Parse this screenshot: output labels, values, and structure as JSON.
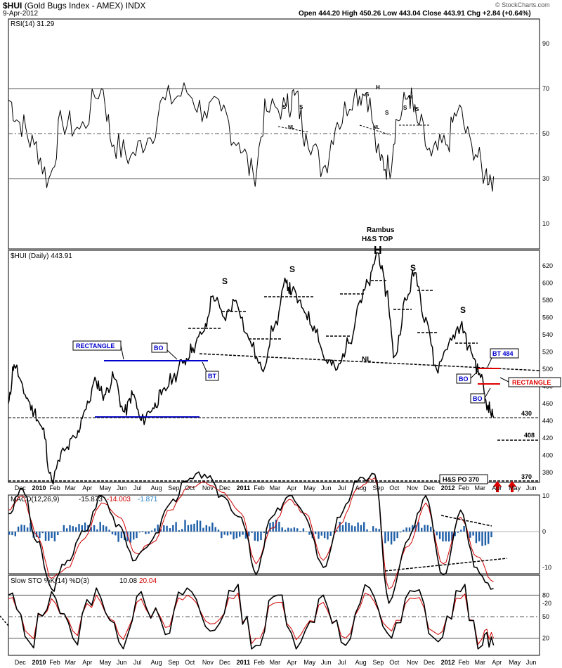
{
  "header": {
    "symbol": "$HUI",
    "name": "(Gold Bugs Index - AMEX)",
    "exchange": "INDX",
    "date": "9-Apr-2012",
    "ohlc": "Open 444.20   High 450.26   Low 443.04   Close 443.91   Chg +2.84 (+0.64%)",
    "brand": "© StockCharts.com"
  },
  "chart_data": [
    {
      "type": "line",
      "name": "rsi",
      "title": "RSI(14) 31.29",
      "y_ticks": [
        "90",
        "70",
        "50",
        "30",
        "10"
      ],
      "ylim": [
        0,
        100
      ],
      "levels": [
        70,
        50,
        30
      ],
      "x": [
        "2009-11-25",
        "2009-12-15",
        "2010-01-10",
        "2010-02-05",
        "2010-03-01",
        "2010-04-01",
        "2010-05-10",
        "2010-06-01",
        "2010-07-01",
        "2010-08-01",
        "2010-09-01",
        "2010-10-10",
        "2010-11-10",
        "2010-12-10",
        "2011-01-10",
        "2011-02-05",
        "2011-03-01",
        "2011-04-05",
        "2011-04-20",
        "2011-05-10",
        "2011-06-10",
        "2011-07-05",
        "2011-08-05",
        "2011-08-25",
        "2011-09-20",
        "2011-10-05",
        "2011-10-20",
        "2011-11-10",
        "2011-11-25",
        "2011-12-20",
        "2012-01-15",
        "2012-02-05",
        "2012-03-01",
        "2012-03-25",
        "2012-04-09"
      ],
      "values": [
        65,
        55,
        45,
        30,
        55,
        52,
        70,
        45,
        40,
        48,
        65,
        68,
        60,
        60,
        46,
        32,
        60,
        62,
        67,
        50,
        35,
        55,
        68,
        68,
        38,
        35,
        56,
        67,
        55,
        40,
        45,
        60,
        45,
        32,
        31
      ],
      "annotations": [
        "S",
        "S",
        "NL",
        "S",
        "H",
        "S",
        "NL",
        "S",
        "H",
        "S"
      ]
    },
    {
      "type": "line",
      "name": "price",
      "title": "$HUI (Daily) 443.91",
      "y_ticks": [
        "620",
        "600",
        "580",
        "560",
        "540",
        "520",
        "500",
        "480",
        "460",
        "440",
        "420",
        "400",
        "380"
      ],
      "ylim": [
        365,
        640
      ],
      "x": [
        "2009-11-25",
        "2009-12-05",
        "2009-12-25",
        "2010-01-10",
        "2010-01-25",
        "2010-02-10",
        "2010-03-05",
        "2010-03-25",
        "2010-04-10",
        "2010-05-01",
        "2010-05-15",
        "2010-06-01",
        "2010-06-20",
        "2010-07-05",
        "2010-07-20",
        "2010-08-10",
        "2010-08-25",
        "2010-09-15",
        "2010-10-05",
        "2010-10-20",
        "2010-11-10",
        "2010-11-25",
        "2010-12-15",
        "2011-01-05",
        "2011-01-28",
        "2011-02-20",
        "2011-03-15",
        "2011-04-05",
        "2011-04-15",
        "2011-05-05",
        "2011-05-25",
        "2011-06-15",
        "2011-07-05",
        "2011-07-25",
        "2011-08-15",
        "2011-08-30",
        "2011-09-15",
        "2011-10-01",
        "2011-10-15",
        "2011-11-05",
        "2011-11-20",
        "2011-12-10",
        "2011-12-29",
        "2012-01-20",
        "2012-02-10",
        "2012-02-29",
        "2012-03-15",
        "2012-03-30",
        "2012-04-09"
      ],
      "values": [
        460,
        505,
        470,
        450,
        430,
        372,
        405,
        420,
        452,
        485,
        470,
        490,
        450,
        470,
        440,
        455,
        470,
        490,
        510,
        525,
        545,
        585,
        560,
        580,
        535,
        500,
        550,
        600,
        590,
        570,
        550,
        510,
        500,
        530,
        580,
        600,
        635,
        590,
        515,
        580,
        612,
        560,
        500,
        530,
        550,
        520,
        495,
        458,
        443.91
      ],
      "levels": {
        "neckline_label": "NL",
        "rect_2010_top": 492,
        "rect_2010_bottom": 430,
        "rect_2012_top": 484,
        "rect_2012_bottom": 466,
        "support_430": 430,
        "support_408": 408,
        "target_370": 370
      },
      "annotations": {
        "top_title_1": "Rambus",
        "top_title_2": "H&S TOP",
        "head": "H",
        "shoulders": [
          "S",
          "S",
          "S",
          "S"
        ],
        "neckline": "NL",
        "rectangle_2010": "RECTANGLE",
        "rectangle_2012": "RECTANGLE",
        "bo_2010": "BO",
        "bt_2010": "BT",
        "bt_2012": "BT 484",
        "bo_2012_a": "BO",
        "bo_2012_b": "BO",
        "label_430": "430",
        "label_408": "408",
        "label_370": "370",
        "po_label": "H&S PO 370"
      }
    },
    {
      "type": "line",
      "name": "macd",
      "title": "MACD(12,26,9)",
      "values_text": [
        "-15.873",
        "-14.003",
        "-1.871"
      ],
      "y_ticks": [
        "10",
        "0",
        "-10",
        "-20"
      ],
      "ylim": [
        -23,
        16
      ],
      "x": [
        "2009-11-25",
        "2009-12-20",
        "2010-01-15",
        "2010-02-10",
        "2010-03-10",
        "2010-04-10",
        "2010-05-10",
        "2010-06-10",
        "2010-07-10",
        "2010-08-10",
        "2010-09-10",
        "2010-10-10",
        "2010-11-10",
        "2010-12-10",
        "2011-01-15",
        "2011-02-10",
        "2011-03-10",
        "2011-04-10",
        "2011-05-10",
        "2011-06-10",
        "2011-07-10",
        "2011-08-10",
        "2011-09-10",
        "2011-10-05",
        "2011-11-10",
        "2011-12-10",
        "2012-01-10",
        "2012-02-10",
        "2012-03-10",
        "2012-04-09"
      ],
      "series": [
        {
          "values": [
            5,
            12,
            -3,
            -16,
            -8,
            0,
            10,
            2,
            -8,
            -2,
            8,
            14,
            16,
            10,
            4,
            -12,
            4,
            10,
            4,
            -10,
            4,
            14,
            16,
            -20,
            -2,
            10,
            -12,
            6,
            -10,
            -15.873
          ]
        },
        {
          "values": [
            6,
            10,
            -1,
            -13,
            -10,
            -2,
            8,
            4,
            -6,
            -3,
            6,
            12,
            14,
            11,
            5,
            -9,
            1,
            9,
            5,
            -8,
            2,
            12,
            15,
            -16,
            -4,
            8,
            -9,
            4,
            -7,
            -14.003
          ]
        }
      ]
    },
    {
      "type": "line",
      "name": "stochastic",
      "title": "Slow STO %K(14) %D(3)",
      "values_text": [
        "10.08",
        "20.04"
      ],
      "y_ticks": [
        "80",
        "50",
        "20"
      ],
      "ylim": [
        0,
        100
      ],
      "levels": [
        80,
        50,
        20
      ],
      "x": [
        "2009-11-25",
        "2010-01-01",
        "2010-02-10",
        "2010-03-20",
        "2010-05-01",
        "2010-06-10",
        "2010-07-20",
        "2010-09-01",
        "2010-10-10",
        "2010-11-20",
        "2011-01-01",
        "2011-02-10",
        "2011-03-20",
        "2011-05-01",
        "2011-06-10",
        "2011-07-20",
        "2011-09-01",
        "2011-10-10",
        "2011-11-20",
        "2012-01-01",
        "2012-02-10",
        "2012-03-20",
        "2012-04-09"
      ],
      "series": [
        {
          "values": [
            80,
            15,
            85,
            20,
            90,
            15,
            85,
            25,
            90,
            30,
            85,
            10,
            80,
            15,
            80,
            10,
            90,
            20,
            85,
            15,
            85,
            10,
            10.08
          ]
        },
        {
          "values": [
            75,
            25,
            75,
            30,
            80,
            25,
            75,
            35,
            80,
            40,
            75,
            20,
            70,
            25,
            70,
            20,
            80,
            30,
            75,
            25,
            75,
            20,
            20.04
          ]
        }
      ]
    }
  ],
  "x_axis": {
    "labels": [
      "Dec",
      "2010",
      "Feb",
      "Mar",
      "Apr",
      "May",
      "Jun",
      "Jul",
      "Aug",
      "Sep",
      "Oct",
      "Nov",
      "Dec",
      "2011",
      "Feb",
      "Mar",
      "Apr",
      "May",
      "Jun",
      "Jul",
      "Aug",
      "Sep",
      "Oct",
      "Nov",
      "Dec",
      "2012",
      "Feb",
      "Mar",
      "Apr",
      "May",
      "Jun"
    ]
  },
  "colors": {
    "price": "#000000",
    "signal": "#d00000",
    "histogram": "#1f5fa8",
    "annotation_blue": "#0000cc",
    "annotation_red": "#e00000",
    "grid": "#888888"
  }
}
